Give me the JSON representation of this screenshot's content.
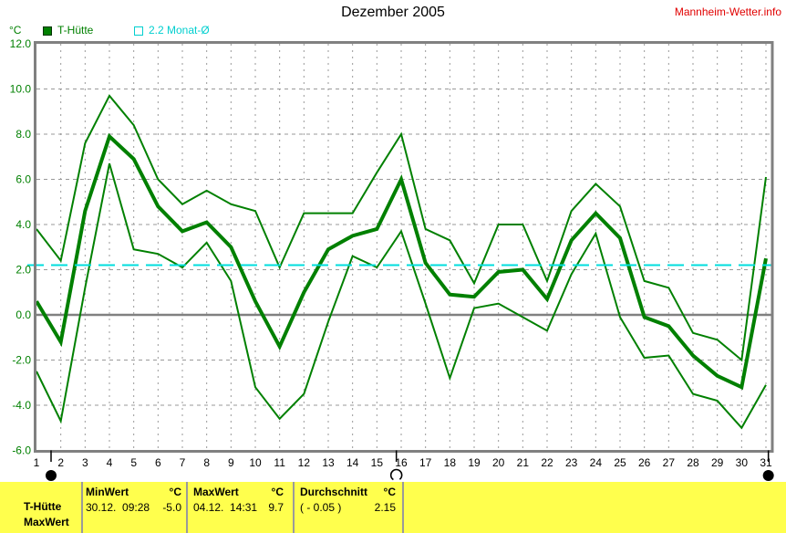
{
  "header": {
    "title": "Dezember 2005",
    "site_link": "Mannheim-Wetter.info",
    "unit_label": "°C"
  },
  "legend": {
    "items": [
      {
        "label": "T-Hütte",
        "color": "#008000",
        "swatch": "filled-square"
      },
      {
        "label": "2.2 Monat-Ø",
        "color": "#00cfcf",
        "swatch": "open-square"
      }
    ]
  },
  "chart_data": {
    "type": "line",
    "title": "Dezember 2005",
    "unit": "°C",
    "ylim": [
      -6.0,
      12.0
    ],
    "ytick_step": 2.0,
    "grid": true,
    "legend_position": "top-left",
    "days": [
      1,
      2,
      3,
      4,
      5,
      6,
      7,
      8,
      9,
      10,
      11,
      12,
      13,
      14,
      15,
      16,
      17,
      18,
      19,
      20,
      21,
      22,
      23,
      24,
      25,
      26,
      27,
      28,
      29,
      30,
      31
    ],
    "series": [
      {
        "name": "T-Hütte Max",
        "line_width": 2,
        "values": [
          3.8,
          2.4,
          7.6,
          9.7,
          8.4,
          6.0,
          4.9,
          5.5,
          4.9,
          4.6,
          2.1,
          4.5,
          4.5,
          4.5,
          6.3,
          8.0,
          3.8,
          3.3,
          1.4,
          4.0,
          4.0,
          1.5,
          4.6,
          5.8,
          4.8,
          1.5,
          1.2,
          -0.8,
          -1.1,
          -2.0,
          6.1
        ]
      },
      {
        "name": "T-Hütte Mittel",
        "line_width": 4,
        "values": [
          0.6,
          -1.2,
          4.6,
          7.9,
          6.9,
          4.8,
          3.7,
          4.1,
          3.0,
          0.6,
          -1.4,
          1.0,
          2.9,
          3.5,
          3.8,
          6.0,
          2.3,
          0.9,
          0.8,
          1.9,
          2.0,
          0.7,
          3.3,
          4.5,
          3.4,
          -0.1,
          -0.5,
          -1.8,
          -2.7,
          -3.2,
          2.5
        ]
      },
      {
        "name": "T-Hütte Min",
        "line_width": 2,
        "values": [
          -2.5,
          -4.7,
          1.2,
          6.7,
          2.9,
          2.7,
          2.1,
          3.2,
          1.5,
          -3.2,
          -4.6,
          -3.5,
          -0.3,
          2.6,
          2.1,
          3.7,
          0.5,
          -2.8,
          0.3,
          0.5,
          -0.1,
          -0.7,
          1.8,
          3.6,
          -0.1,
          -1.9,
          -1.8,
          -3.5,
          -3.8,
          -5.0,
          -3.1
        ]
      }
    ],
    "avg_line": {
      "label": "2.2 Monat-Ø",
      "value": 2.2,
      "color": "#00dede"
    },
    "moon_markers": [
      {
        "day": 1.6,
        "phase": "new"
      },
      {
        "day": 15.8,
        "phase": "full"
      },
      {
        "day": 31.1,
        "phase": "new"
      }
    ],
    "colors": {
      "series": "#008000",
      "grid": "#999999",
      "frame": "#808080",
      "zero_line": "#808080"
    }
  },
  "footer": {
    "row_label_top": "T-Hütte",
    "row_label_bottom": "MaxWert",
    "columns": [
      {
        "header": "MinWert",
        "unit": "°C",
        "time": "30.12.  09:28",
        "value": "-5.0"
      },
      {
        "header": "MaxWert",
        "unit": "°C",
        "time": "04.12.  14:31",
        "value": "9.7"
      },
      {
        "header": "Durchschnitt",
        "unit": "°C",
        "time": "( - 0.05 )",
        "value": "2.15"
      }
    ]
  }
}
